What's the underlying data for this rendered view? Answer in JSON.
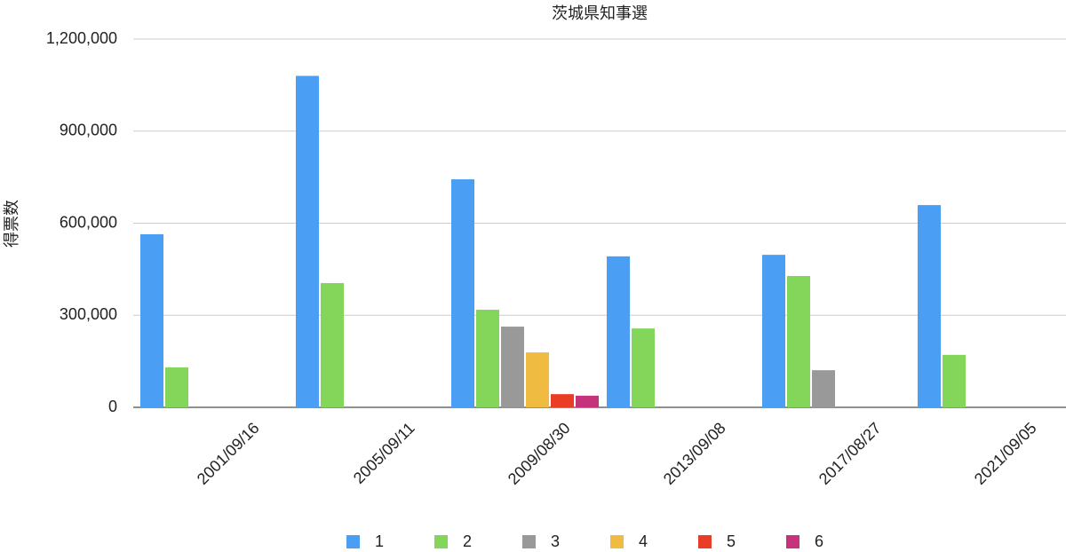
{
  "chart_data": {
    "type": "bar",
    "title": "茨城県知事選",
    "y_label": "得票数",
    "categories": [
      "2001/09/16",
      "2005/09/11",
      "2009/08/30",
      "2013/09/08",
      "2017/08/27",
      "2021/09/05"
    ],
    "series": [
      {
        "name": "1",
        "color": "#4a9ff5",
        "values": [
          564000,
          1080000,
          743000,
          492000,
          497000,
          659000
        ]
      },
      {
        "name": "2",
        "color": "#84d65a",
        "values": [
          130000,
          405000,
          318000,
          257000,
          428000,
          171000
        ]
      },
      {
        "name": "3",
        "color": "#999999",
        "values": [
          null,
          null,
          263000,
          null,
          121000,
          null
        ]
      },
      {
        "name": "4",
        "color": "#f0bb41",
        "values": [
          null,
          null,
          179000,
          null,
          null,
          null
        ]
      },
      {
        "name": "5",
        "color": "#ea3d26",
        "values": [
          null,
          null,
          43000,
          null,
          null,
          null
        ]
      },
      {
        "name": "6",
        "color": "#c7337a",
        "values": [
          null,
          null,
          38000,
          null,
          null,
          null
        ]
      }
    ],
    "ylim": [
      0,
      1200000
    ],
    "yticks": [
      0,
      {
        "value": 300000,
        "label": "300,000"
      },
      {
        "value": 600000,
        "label": "600,000"
      },
      {
        "value": 900000,
        "label": "900,000"
      },
      {
        "value": 1200000,
        "label": "1,200,000"
      }
    ],
    "grid": true
  }
}
